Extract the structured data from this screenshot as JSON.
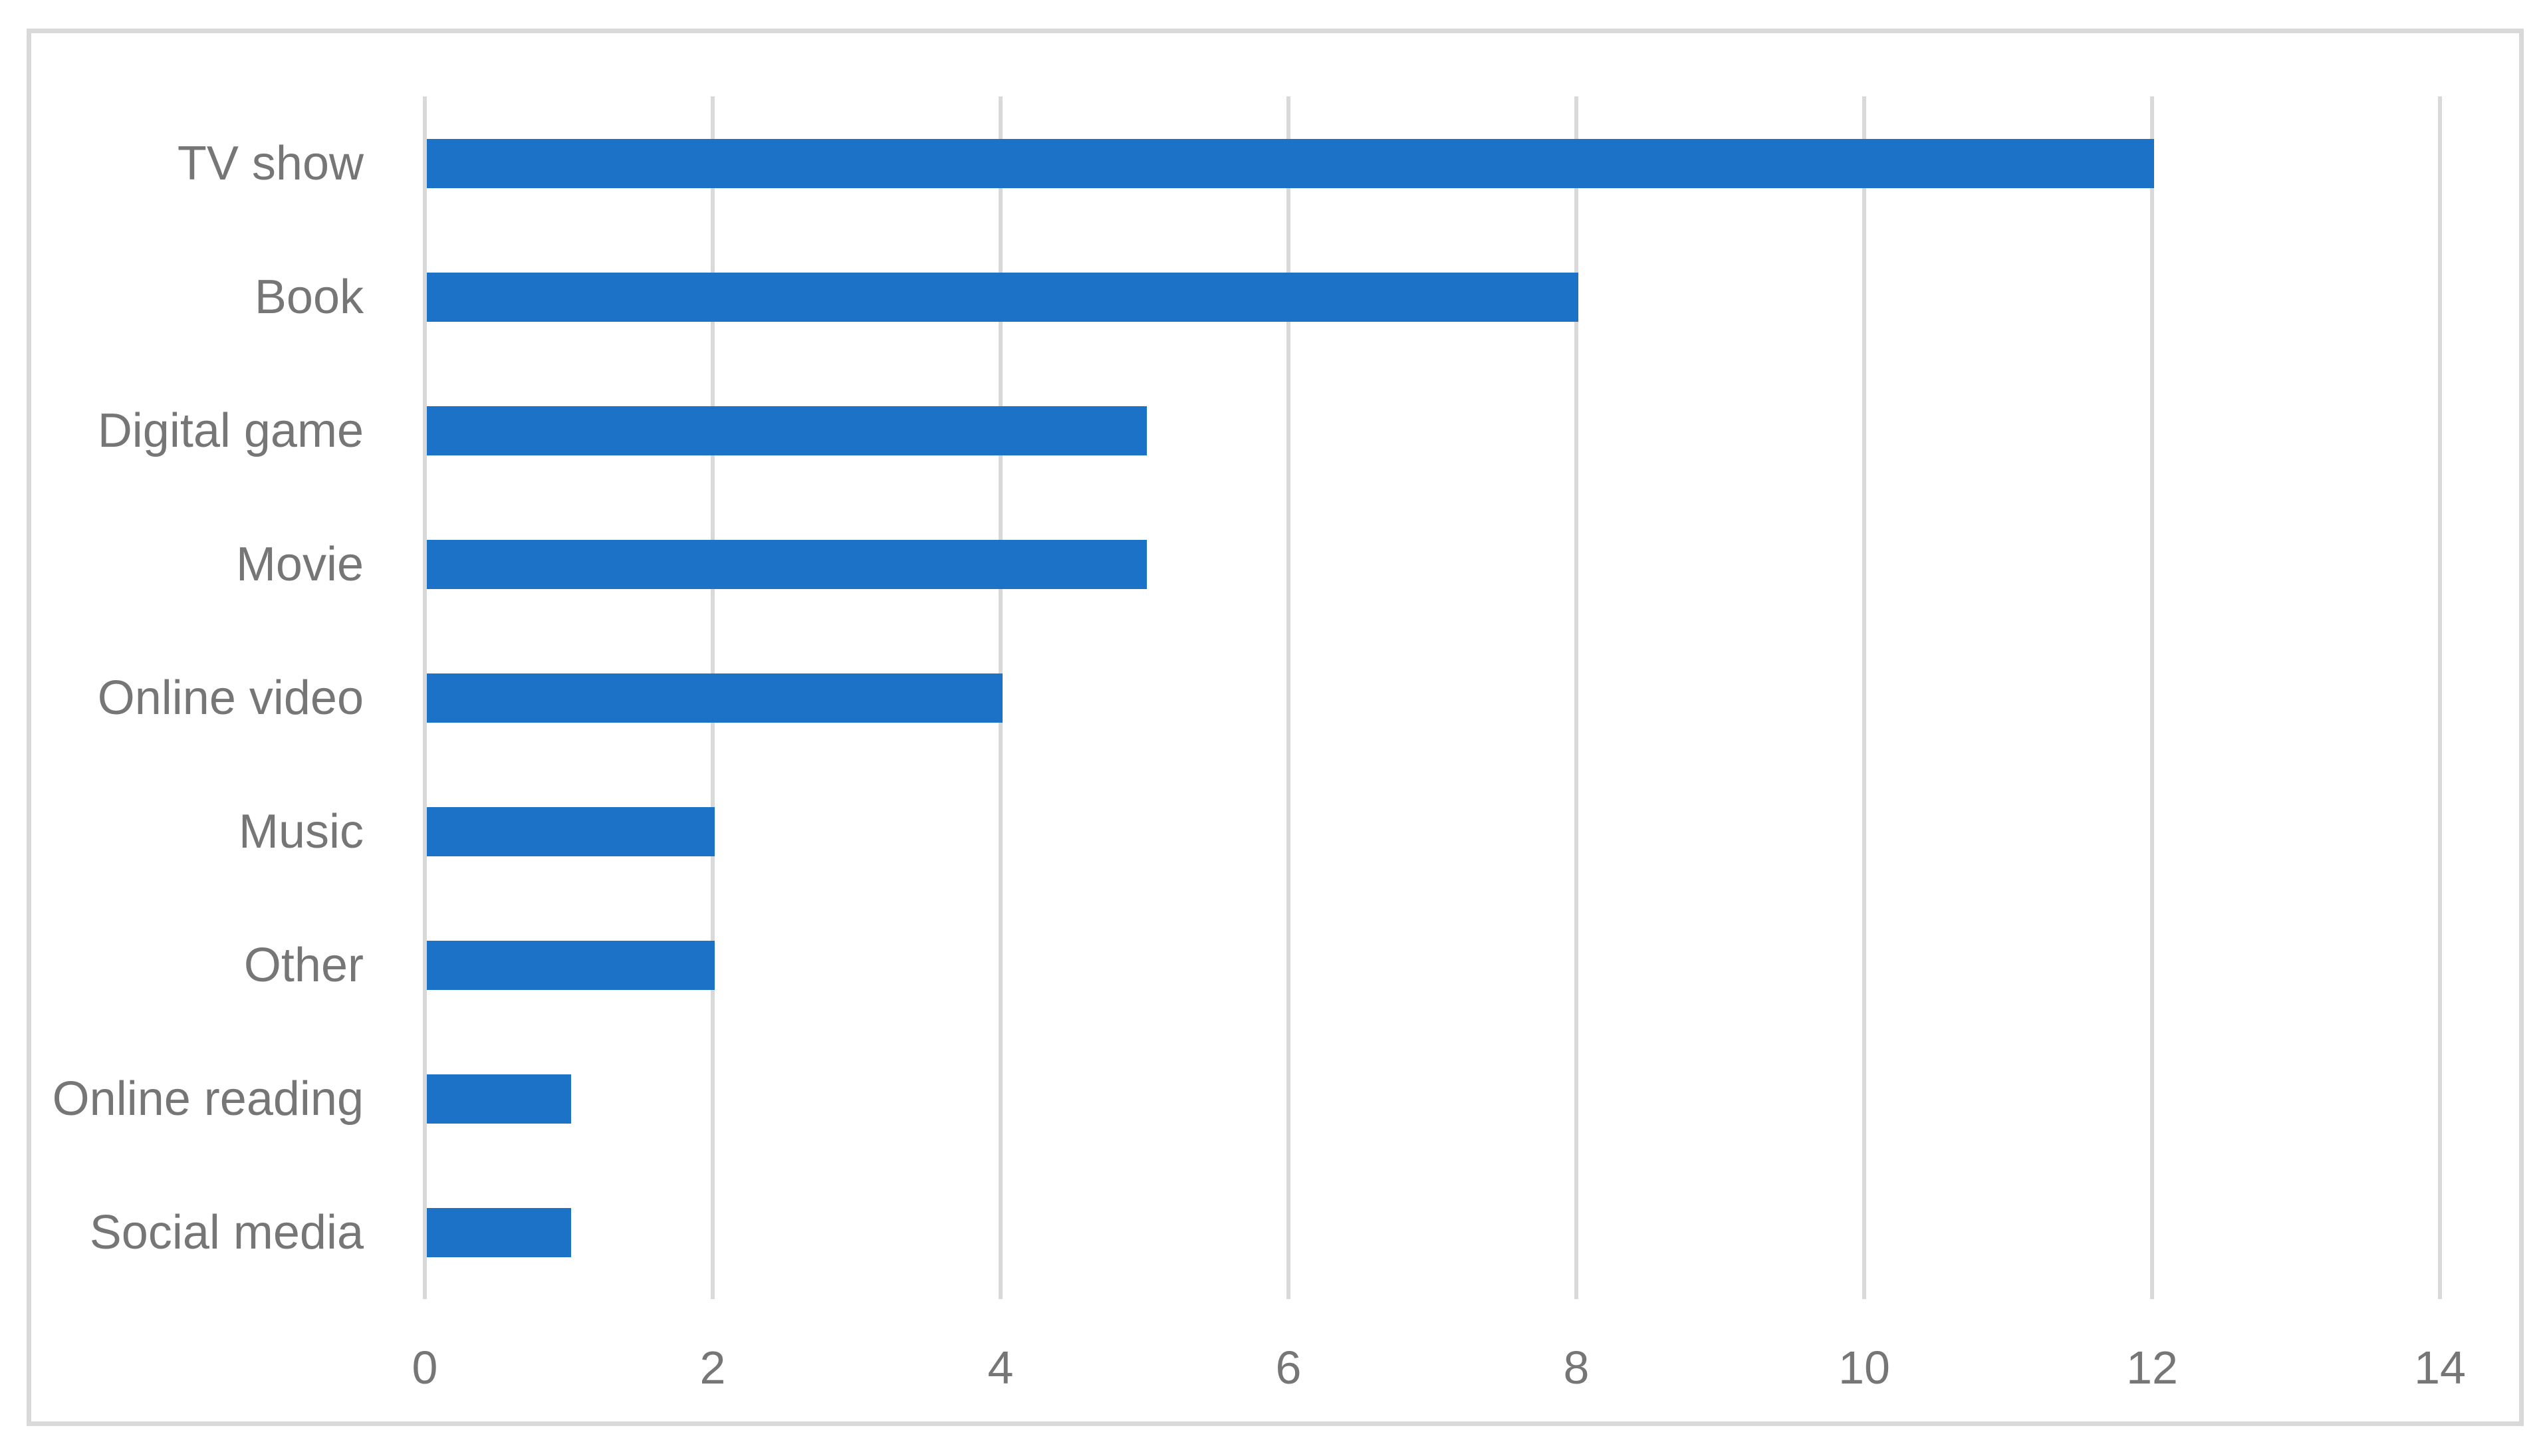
{
  "chart_data": {
    "type": "bar",
    "orientation": "horizontal",
    "title": "",
    "xlabel": "",
    "ylabel": "",
    "categories": [
      "TV show",
      "Book",
      "Digital game",
      "Movie",
      "Online video",
      "Music",
      "Other",
      "Online reading",
      "Social media"
    ],
    "values": [
      12,
      8,
      5,
      5,
      4,
      2,
      2,
      1,
      1
    ],
    "xlim": [
      0,
      14
    ],
    "xticks": [
      0,
      2,
      4,
      6,
      8,
      10,
      12,
      14
    ],
    "grid": "vertical-only",
    "legend": "none"
  },
  "style": {
    "bar_color": "#1B72C6",
    "grid_color": "#D9D9D9",
    "frame_border_color": "#D9D9D9",
    "label_color": "#767676",
    "background_color": "#FFFFFF"
  }
}
